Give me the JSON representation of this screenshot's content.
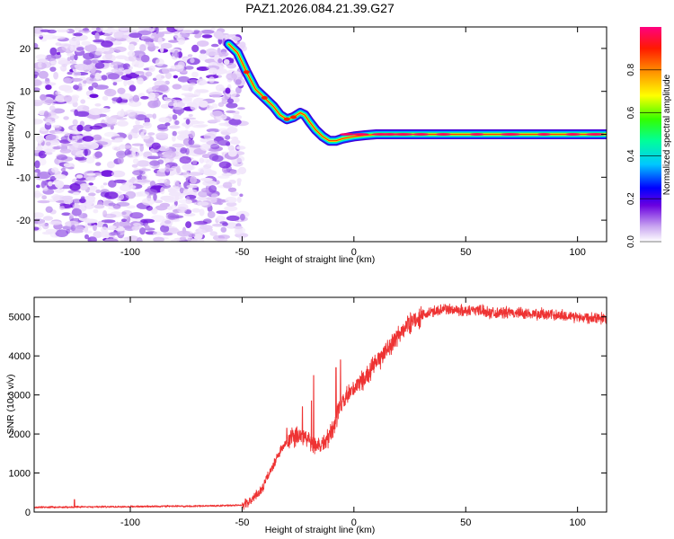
{
  "title": "PAZ1.2026.084.21.39.G27",
  "chart_data": [
    {
      "type": "heatmap",
      "name": "spectrogram",
      "xlabel": "Height of straight line (km)",
      "ylabel": "Frequency (Hz)",
      "xlim": [
        -143,
        113
      ],
      "ylim": [
        -25,
        25
      ],
      "xticks": [
        -100,
        -50,
        0,
        50,
        100
      ],
      "xtick_labels": [
        "-100",
        "-50",
        "0",
        "50",
        "100"
      ],
      "yticks": [
        -20,
        -10,
        0,
        10,
        20
      ],
      "ytick_labels": [
        "-20",
        "-10",
        "0",
        "10",
        "20"
      ],
      "noise_region_x": [
        -143,
        -52
      ],
      "signal_track": {
        "x": [
          -56,
          -52,
          -48,
          -44,
          -40,
          -36,
          -33,
          -30,
          -27,
          -24,
          -22,
          -20,
          -17,
          -14,
          -11,
          -8,
          -5,
          -2,
          0,
          5,
          10,
          20,
          113
        ],
        "frequency": [
          21,
          19,
          14.5,
          10.5,
          8.5,
          6.5,
          4.5,
          3.5,
          4,
          5,
          4.5,
          3,
          1,
          -0.5,
          -1.5,
          -1.5,
          -1,
          -0.7,
          -0.5,
          -0.2,
          0,
          0,
          0
        ]
      },
      "colorbar": {
        "label": "Normalized spectral amplitude",
        "range": [
          0,
          1
        ],
        "ticks": [
          0.0,
          0.2,
          0.4,
          0.6,
          0.8
        ],
        "tick_labels": [
          "0.0",
          "0.2",
          "0.4",
          "0.6",
          "0.8"
        ]
      }
    },
    {
      "type": "line",
      "name": "snr",
      "xlabel": "Height of straight line (km)",
      "ylabel": "SNR (10 * v/v)",
      "xlim": [
        -143,
        113
      ],
      "ylim": [
        0,
        5500
      ],
      "xticks": [
        -100,
        -50,
        0,
        50,
        100
      ],
      "xtick_labels": [
        "-100",
        "-50",
        "0",
        "50",
        "100"
      ],
      "yticks": [
        0,
        1000,
        2000,
        3000,
        4000,
        5000
      ],
      "ytick_labels": [
        "0",
        "1000",
        "2000",
        "3000",
        "4000",
        "5000"
      ],
      "color": "#ee3333",
      "series": [
        {
          "name": "SNR",
          "x": [
            -143,
            -120,
            -100,
            -80,
            -60,
            -50,
            -47,
            -45,
            -43,
            -41,
            -39,
            -36,
            -33,
            -30,
            -27,
            -24,
            -21,
            -18,
            -15,
            -12,
            -9,
            -6,
            -3,
            0,
            3,
            6,
            9,
            12,
            15,
            18,
            21,
            24,
            28,
            32,
            36,
            40,
            45,
            50,
            55,
            60,
            70,
            80,
            90,
            100,
            113
          ],
          "y": [
            120,
            130,
            140,
            150,
            160,
            180,
            250,
            350,
            480,
            600,
            850,
            1200,
            1550,
            1800,
            1900,
            2000,
            1900,
            1750,
            1700,
            1850,
            2200,
            2700,
            2950,
            3150,
            3350,
            3500,
            3750,
            3950,
            4200,
            4350,
            4600,
            4800,
            4950,
            5050,
            5150,
            5200,
            5180,
            5150,
            5200,
            5120,
            5100,
            5080,
            5050,
            5000,
            4980
          ]
        }
      ],
      "spikes": [
        {
          "x": -18,
          "y": 3500
        },
        {
          "x": -19,
          "y": 2850
        },
        {
          "x": -6,
          "y": 3900
        },
        {
          "x": -8,
          "y": 3700
        },
        {
          "x": -23,
          "y": 2700
        },
        {
          "x": -30,
          "y": 2150
        },
        {
          "x": -125,
          "y": 320
        }
      ]
    }
  ]
}
